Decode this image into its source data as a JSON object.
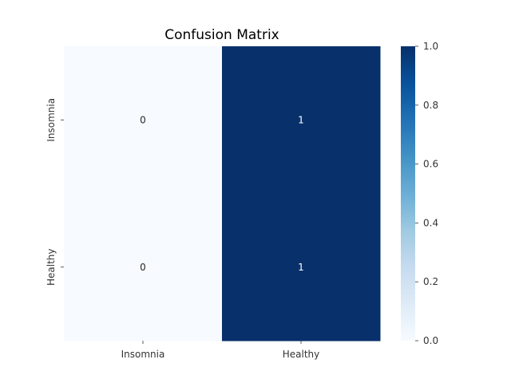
{
  "chart_data": {
    "type": "heatmap",
    "title": "Confusion Matrix",
    "xlabel": "",
    "ylabel": "",
    "x_categories": [
      "Insomnia",
      "Healthy"
    ],
    "y_categories": [
      "Insomnia",
      "Healthy"
    ],
    "values": [
      [
        0,
        1
      ],
      [
        0,
        1
      ]
    ],
    "annotations": [
      [
        "0",
        "1"
      ],
      [
        "0",
        "1"
      ]
    ],
    "colormap": "Blues",
    "color_low": "#f7fbff",
    "color_high": "#08306b",
    "colorbar": {
      "range": [
        0.0,
        1.0
      ],
      "ticks": [
        "0.0",
        "0.2",
        "0.4",
        "0.6",
        "0.8",
        "1.0"
      ],
      "placement": "right"
    },
    "grid": false,
    "legend": "none"
  }
}
